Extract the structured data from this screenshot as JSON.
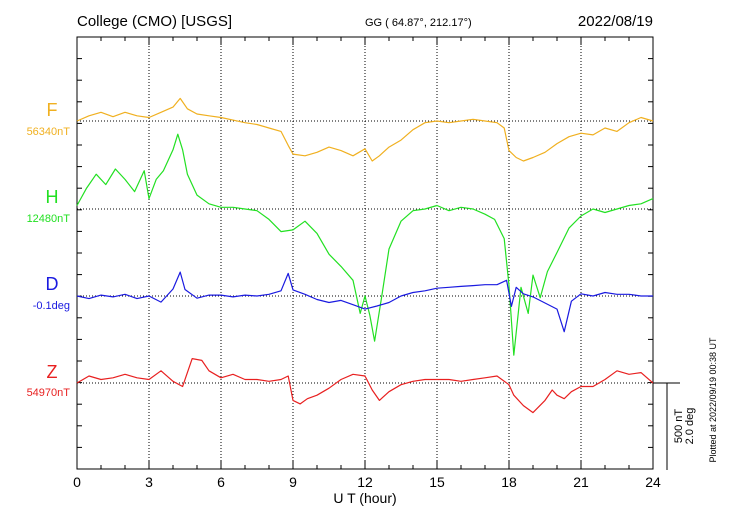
{
  "header": {
    "station": "College (CMO)  [USGS]",
    "coords": "GG ( 64.87°, 212.17°)",
    "date": "2022/08/19"
  },
  "footer": {
    "plotted_at": "Plotted at 2022/09/19 00:38 UT",
    "scale_nt": "500 nT",
    "scale_deg": "2.0 deg"
  },
  "colors": {
    "F": "#f0b020",
    "H": "#22e022",
    "D": "#1a1ae0",
    "Z": "#e82020",
    "axis": "#000000"
  },
  "chart_data": {
    "type": "line",
    "title": "College (CMO)  [USGS]",
    "xlabel": "U T (hour)",
    "xlim": [
      0,
      24
    ],
    "x_ticks": [
      0,
      3,
      6,
      9,
      12,
      15,
      18,
      21,
      24
    ],
    "x_tick_labels": [
      "0",
      "3",
      "6",
      "9",
      "12",
      "15",
      "18",
      "21",
      "24"
    ],
    "grid": "vertical dotted every 3 h; dotted baseline per trace",
    "scale_bar": {
      "nT": 500,
      "deg": 2.0
    },
    "series": [
      {
        "name": "F",
        "baseline_label": "56340nT",
        "baseline": 56340,
        "unit": "nT",
        "x": [
          0,
          0.5,
          1,
          1.5,
          2,
          2.5,
          3,
          3.5,
          4,
          4.3,
          4.6,
          5,
          5.5,
          6,
          6.5,
          7,
          7.5,
          8,
          8.5,
          8.8,
          9,
          9.5,
          10,
          10.5,
          11,
          11.5,
          12,
          12.3,
          12.6,
          13,
          13.5,
          14,
          14.5,
          15,
          15.5,
          16,
          16.5,
          17,
          17.5,
          17.8,
          18,
          18.3,
          18.6,
          19,
          19.5,
          20,
          20.5,
          21,
          21.5,
          22,
          22.5,
          23,
          23.5,
          24
        ],
        "y": [
          56340,
          56370,
          56390,
          56365,
          56390,
          56370,
          56360,
          56390,
          56420,
          56470,
          56410,
          56380,
          56370,
          56360,
          56345,
          56330,
          56320,
          56300,
          56280,
          56200,
          56150,
          56140,
          56160,
          56190,
          56170,
          56140,
          56180,
          56110,
          56140,
          56190,
          56230,
          56290,
          56330,
          56340,
          56330,
          56340,
          56350,
          56340,
          56330,
          56300,
          56170,
          56130,
          56110,
          56130,
          56160,
          56210,
          56250,
          56270,
          56260,
          56300,
          56280,
          56330,
          56360,
          56340
        ]
      },
      {
        "name": "H",
        "baseline_label": "12480nT",
        "baseline": 12480,
        "unit": "nT",
        "x": [
          0,
          0.4,
          0.8,
          1.2,
          1.6,
          2,
          2.4,
          2.8,
          3,
          3.3,
          3.6,
          4,
          4.2,
          4.4,
          4.6,
          5,
          5.5,
          6,
          6.5,
          7,
          7.5,
          8,
          8.5,
          9,
          9.5,
          10,
          10.5,
          11,
          11.5,
          11.8,
          12,
          12.2,
          12.4,
          12.7,
          13,
          13.5,
          14,
          14.5,
          15,
          15.5,
          16,
          16.5,
          17,
          17.4,
          17.8,
          18,
          18.2,
          18.5,
          18.8,
          19,
          19.3,
          19.6,
          20,
          20.5,
          21,
          21.5,
          22,
          22.5,
          23,
          23.5,
          24
        ],
        "y": [
          12500,
          12600,
          12680,
          12620,
          12710,
          12650,
          12580,
          12700,
          12540,
          12650,
          12700,
          12820,
          12910,
          12820,
          12680,
          12560,
          12510,
          12490,
          12490,
          12480,
          12470,
          12420,
          12350,
          12360,
          12410,
          12340,
          12220,
          12150,
          12070,
          11880,
          11980,
          11870,
          11720,
          11980,
          12250,
          12410,
          12470,
          12480,
          12500,
          12470,
          12490,
          12480,
          12450,
          12420,
          12310,
          12040,
          11640,
          12030,
          11880,
          12100,
          11970,
          12120,
          12230,
          12370,
          12440,
          12480,
          12460,
          12480,
          12500,
          12510,
          12540
        ]
      },
      {
        "name": "D",
        "baseline_label": "-0.1deg",
        "baseline": -0.1,
        "unit": "deg",
        "x": [
          0,
          0.5,
          1,
          1.5,
          2,
          2.5,
          3,
          3.5,
          4,
          4.3,
          4.5,
          5,
          5.5,
          6,
          6.5,
          7,
          7.5,
          8,
          8.5,
          8.8,
          9,
          9.5,
          10,
          10.5,
          11,
          11.5,
          12,
          12.5,
          13,
          13.5,
          14,
          14.5,
          15,
          15.5,
          16,
          16.5,
          17,
          17.5,
          17.9,
          18.1,
          18.3,
          18.6,
          19,
          19.5,
          20,
          20.3,
          20.6,
          21,
          21.5,
          22,
          22.5,
          23,
          23.5,
          24
        ],
        "y": [
          -0.1,
          -0.16,
          -0.08,
          -0.12,
          -0.06,
          -0.16,
          -0.1,
          -0.24,
          0.06,
          0.45,
          0.05,
          -0.15,
          -0.08,
          -0.08,
          -0.12,
          -0.08,
          -0.1,
          -0.06,
          0.02,
          0.42,
          0.04,
          -0.06,
          -0.18,
          -0.25,
          -0.2,
          -0.3,
          -0.4,
          -0.33,
          -0.25,
          -0.1,
          -0.02,
          0.02,
          0.08,
          0.1,
          0.12,
          0.14,
          0.16,
          0.16,
          0.26,
          -0.34,
          0.1,
          -0.05,
          -0.12,
          -0.26,
          -0.4,
          -0.92,
          -0.22,
          -0.05,
          -0.1,
          -0.02,
          -0.06,
          -0.06,
          -0.1,
          -0.1
        ]
      },
      {
        "name": "Z",
        "baseline_label": "54970nT",
        "baseline": 54970,
        "unit": "nT",
        "x": [
          0,
          0.5,
          1,
          1.5,
          2,
          2.5,
          3,
          3.5,
          4,
          4.4,
          4.8,
          5.2,
          5.5,
          6,
          6.5,
          7,
          7.5,
          8,
          8.5,
          8.8,
          9,
          9.3,
          9.6,
          10,
          10.5,
          11,
          11.5,
          12,
          12.3,
          12.6,
          13,
          13.5,
          14,
          14.5,
          15,
          15.5,
          16,
          16.5,
          17,
          17.5,
          18,
          18.2,
          18.6,
          19,
          19.5,
          19.8,
          20,
          20.3,
          20.6,
          21,
          21.5,
          22,
          22.5,
          23,
          23.5,
          24
        ],
        "y": [
          54970,
          55010,
          54990,
          55000,
          55020,
          55000,
          54990,
          55040,
          54980,
          54950,
          55110,
          55100,
          55040,
          55000,
          55020,
          54990,
          54990,
          54980,
          54990,
          55010,
          54870,
          54850,
          54880,
          54900,
          54940,
          54990,
          55020,
          55010,
          54930,
          54870,
          54920,
          54960,
          54980,
          54990,
          54990,
          54990,
          54980,
          54990,
          55000,
          55010,
          54960,
          54900,
          54840,
          54800,
          54870,
          54930,
          54900,
          54880,
          54920,
          54950,
          54950,
          54990,
          55040,
          55020,
          55030,
          54970
        ]
      }
    ]
  }
}
